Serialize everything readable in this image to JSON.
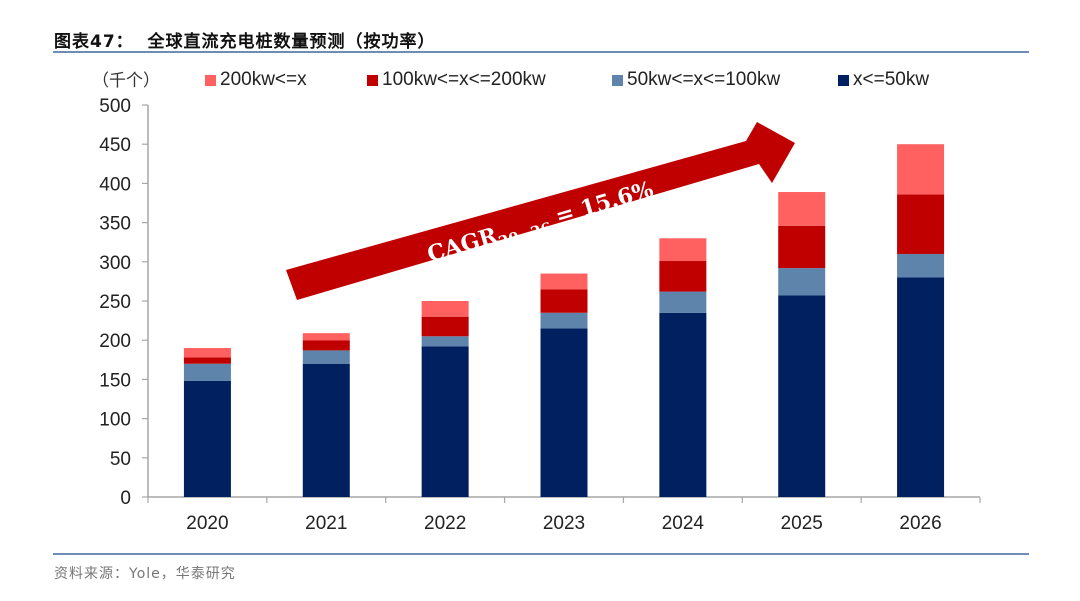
{
  "header": {
    "title": "图表47：  全球直流充电桩数量预测（按功率）"
  },
  "footer": {
    "source": "资料来源：Yole，华泰研究"
  },
  "chart_data": {
    "type": "bar",
    "stacked": true,
    "title": "全球直流充电桩数量预测（按功率）",
    "unit_label": "（千个）",
    "xlabel": "",
    "ylabel": "（千个）",
    "ylim": [
      0,
      500
    ],
    "yticks": [
      0,
      50,
      100,
      150,
      200,
      250,
      300,
      350,
      400,
      450,
      500
    ],
    "grid": false,
    "legend_position": "top",
    "categories": [
      "2020",
      "2021",
      "2022",
      "2023",
      "2024",
      "2025",
      "2026"
    ],
    "series": [
      {
        "name": "x<=50kw",
        "color": "#002060",
        "values": [
          148,
          170,
          192,
          215,
          235,
          257,
          280
        ]
      },
      {
        "name": "50kw<=x<=100kw",
        "color": "#5f84ab",
        "values": [
          22,
          17,
          13,
          20,
          27,
          35,
          30
        ]
      },
      {
        "name": "100kw<=x<=200kw",
        "color": "#c00000",
        "values": [
          8,
          13,
          25,
          30,
          39,
          54,
          76
        ]
      },
      {
        "name": "200kw<=x",
        "color": "#ff6161",
        "values": [
          12,
          9,
          20,
          20,
          29,
          43,
          64
        ]
      }
    ],
    "legend_order": [
      "200kw<=x",
      "100kw<=x<=200kw",
      "50kw<=x<=100kw",
      "x<=50kw"
    ],
    "annotation": {
      "text_main": "CAGR",
      "text_sub": "20−26",
      "text_tail": " = 15.6%",
      "color": "#c00000"
    }
  }
}
